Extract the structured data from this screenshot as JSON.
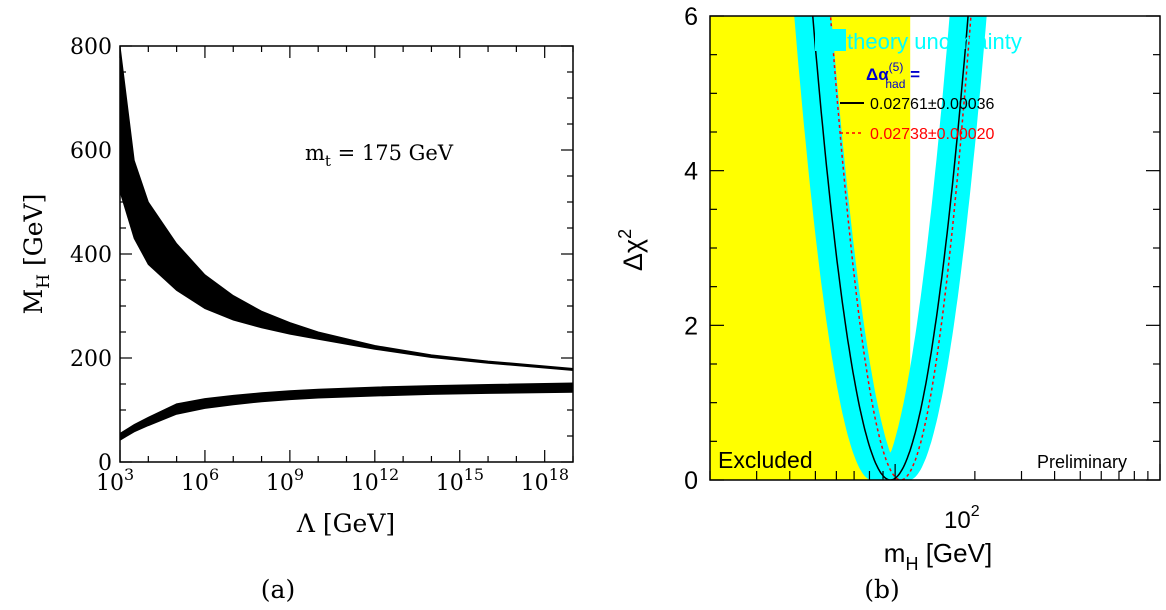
{
  "chart_data": [
    {
      "panel_label": "(a)",
      "type": "area",
      "xlabel": "Λ [GeV]",
      "ylabel": "M",
      "ylabel_sub": "H",
      "ylabel_unit": "[GeV]",
      "x_scale": "log",
      "x_ticks": [
        {
          "base": "10",
          "exp": "3"
        },
        {
          "base": "10",
          "exp": "6"
        },
        {
          "base": "10",
          "exp": "9"
        },
        {
          "base": "10",
          "exp": "12"
        },
        {
          "base": "10",
          "exp": "15"
        },
        {
          "base": "10",
          "exp": "18"
        }
      ],
      "y_ticks": [
        "0",
        "200",
        "400",
        "600",
        "800"
      ],
      "xlim_log10": [
        3,
        19
      ],
      "ylim": [
        0,
        800
      ],
      "annotation": {
        "text": "m",
        "sub": "t",
        "rest": " = 175 GeV"
      },
      "series": [
        {
          "log10_lambda": [
            3,
            3.5,
            4,
            5,
            6,
            7,
            8,
            9,
            10,
            12,
            14,
            16,
            19
          ],
          "upper": [
            800,
            580,
            500,
            420,
            360,
            320,
            290,
            268,
            250,
            224,
            206,
            194,
            180
          ],
          "lower": [
            520,
            430,
            380,
            330,
            295,
            273,
            258,
            246,
            236,
            217,
            201,
            190,
            176
          ]
        },
        {
          "log10_lambda": [
            3,
            3.5,
            4,
            5,
            6,
            7,
            8,
            9,
            10,
            12,
            14,
            16,
            19
          ],
          "upper": [
            55,
            72,
            86,
            112,
            122,
            128,
            133,
            137,
            140,
            144,
            147,
            149,
            152
          ],
          "lower": [
            42,
            58,
            70,
            92,
            103,
            110,
            116,
            120,
            123,
            127,
            130,
            132,
            134
          ]
        }
      ]
    },
    {
      "panel_label": "(b)",
      "type": "line",
      "xlabel": "m",
      "xlabel_sub": "H",
      "xlabel_unit": "[GeV]",
      "ylabel": "Δχ",
      "ylabel_sup": "2",
      "x_scale": "log",
      "x_tick_label": {
        "base": "10",
        "exp": "2"
      },
      "y_ticks": [
        "0",
        "2",
        "4",
        "6"
      ],
      "xlim": [
        20,
        1000
      ],
      "ylim": [
        0,
        6
      ],
      "excluded_region": {
        "label": "Excluded",
        "x_max": 114,
        "color": "#ffff00"
      },
      "preliminary_label": "Preliminary",
      "legend": {
        "band_label": "theory uncertainty",
        "band_color": "#00ffff",
        "header": "Δα",
        "header_sub": "had",
        "header_sup": "(5)",
        "header_eq": " =",
        "header_color": "#0000cc",
        "entries": [
          {
            "label": "0.02761±0.00036",
            "color": "#000000",
            "style": "solid"
          },
          {
            "label": "0.02738±0.00020",
            "color": "#ff0000",
            "style": "dotted"
          }
        ]
      },
      "series": [
        {
          "name": "0.02761±0.00036",
          "minimum_mH": 96,
          "curvature": 1.55,
          "band_halfwidth_decades": 0.07
        },
        {
          "name": "0.02738±0.00020",
          "minimum_mH": 105,
          "curvature": 1.9
        }
      ]
    }
  ]
}
